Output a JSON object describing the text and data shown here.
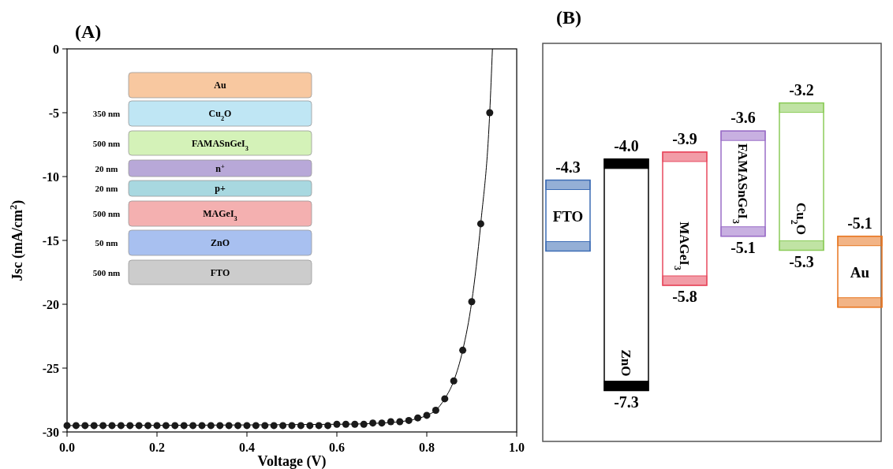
{
  "chart_data": [
    {
      "type": "scatter",
      "title": "(A)",
      "xlabel": "Voltage (V)",
      "ylabel": "Jsc (mA/cm$^{2}$)",
      "xlim": [
        0,
        1
      ],
      "ylim": [
        -30,
        0
      ],
      "xticks": [
        {
          "value": 0,
          "label": "0.0"
        },
        {
          "value": 0.2,
          "label": "0.2"
        },
        {
          "value": 0.4,
          "label": "0.4"
        },
        {
          "value": 0.6,
          "label": "0.6"
        },
        {
          "value": 0.8,
          "label": "0.8"
        },
        {
          "value": 1,
          "label": "1.0"
        }
      ],
      "yticks": [
        0,
        -5,
        -10,
        -15,
        -20,
        -25,
        -30
      ],
      "annotations": [
        "Au",
        "350 nm",
        "Cu$_{2}$O",
        "500 nm",
        "FAMASnGeI$_{3}$",
        "20 nm",
        "n$^{+}$",
        "20 nm",
        "p+",
        "500 nm",
        "MAGeI$_{3}$",
        "50 nm",
        "ZnO",
        "500 nm",
        "FTO"
      ],
      "series": [
        {
          "type": "line",
          "color": "#000000",
          "marker": "none",
          "x": [
            0,
            0.6,
            0.7,
            0.76,
            0.8,
            0.82,
            0.84,
            0.86,
            0.88,
            0.9,
            0.92,
            0.94,
            0.946
          ],
          "values": [
            -29.5,
            -29.4,
            -29.3,
            -29.1,
            -28.7,
            -28.3,
            -27.4,
            -26.0,
            -23.6,
            -19.8,
            -13.7,
            -5.0,
            0
          ]
        },
        {
          "type": "scatter",
          "color": "#1a1a1a",
          "marker": "circle",
          "x": [
            0,
            0.02,
            0.04,
            0.06,
            0.08,
            0.1,
            0.12,
            0.14,
            0.16,
            0.18,
            0.2,
            0.22,
            0.24,
            0.26,
            0.28,
            0.3,
            0.32,
            0.34,
            0.36,
            0.38,
            0.4,
            0.42,
            0.44,
            0.46,
            0.48,
            0.5,
            0.52,
            0.54,
            0.56,
            0.58,
            0.6,
            0.62,
            0.64,
            0.66,
            0.68,
            0.7,
            0.72,
            0.74,
            0.76,
            0.78,
            0.8,
            0.82,
            0.84,
            0.86,
            0.88,
            0.9,
            0.92,
            0.94
          ],
          "values": [
            -29.5,
            -29.5,
            -29.5,
            -29.5,
            -29.5,
            -29.5,
            -29.5,
            -29.5,
            -29.5,
            -29.5,
            -29.5,
            -29.5,
            -29.5,
            -29.5,
            -29.5,
            -29.5,
            -29.5,
            -29.5,
            -29.5,
            -29.5,
            -29.5,
            -29.5,
            -29.5,
            -29.5,
            -29.5,
            -29.5,
            -29.5,
            -29.5,
            -29.5,
            -29.5,
            -29.4,
            -29.4,
            -29.4,
            -29.4,
            -29.3,
            -29.3,
            -29.2,
            -29.2,
            -29.1,
            -28.9,
            -28.7,
            -28.3,
            -27.4,
            -26.0,
            -23.6,
            -19.8,
            -13.7,
            -5.0
          ]
        }
      ]
    },
    {
      "type": "other",
      "title": "(B)",
      "categories": [
        "FTO",
        "ZnO",
        "MAGeI$_{3}$",
        "FAMASnGeI$_{3}$",
        "Cu$_{2}$O",
        "Au"
      ],
      "colors": [
        "#3d6db5",
        "#000000",
        "#e84a5f",
        "#9b6fc8",
        "#8ccc5a",
        "#e87722"
      ],
      "series": [
        {
          "values": [
            -4.3,
            -4.0,
            -3.9,
            -3.6,
            -3.2,
            -5.1
          ],
          "value_labels": [
            "-4.3",
            "-4.0",
            "-3.9",
            "-3.6",
            "-3.2",
            "-5.1"
          ]
        },
        {
          "values": [
            null,
            -7.3,
            -5.8,
            -5.1,
            -5.3,
            null
          ],
          "value_labels": [
            null,
            "-7.3",
            "-5.8",
            "-5.1",
            "-5.3",
            null
          ]
        }
      ]
    }
  ]
}
